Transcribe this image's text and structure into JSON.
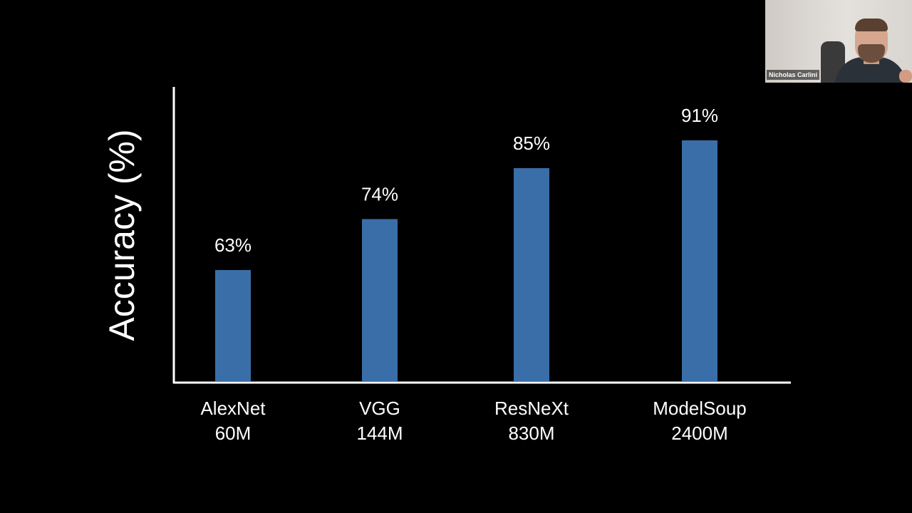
{
  "chart_data": {
    "type": "bar",
    "categories": [
      "AlexNet",
      "VGG",
      "ResNeXt",
      "ModelSoup"
    ],
    "category_sublabels": [
      "60M",
      "144M",
      "830M",
      "2400M"
    ],
    "values": [
      63,
      74,
      85,
      91
    ],
    "value_labels": [
      "63%",
      "74%",
      "85%",
      "91%"
    ],
    "title": "",
    "xlabel": "",
    "ylabel": "Accuracy (%)",
    "ylim": [
      39,
      100
    ],
    "grid": false,
    "legend": "none",
    "bar_color": "#3a6ea8",
    "axis_color": "#ffffff",
    "text_color": "#ffffff",
    "background": "#000000"
  },
  "webcam": {
    "participant_name": "Nicholas Carlini"
  }
}
